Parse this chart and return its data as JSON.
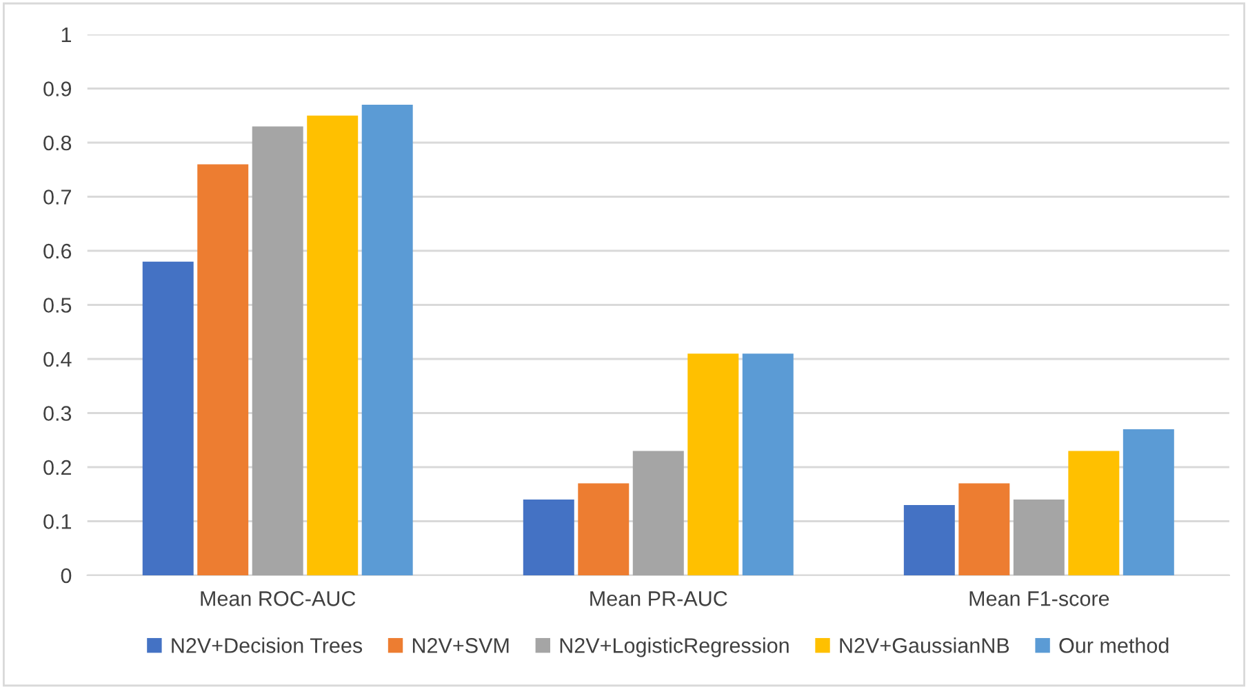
{
  "chart_data": {
    "type": "bar",
    "categories": [
      "Mean ROC-AUC",
      "Mean PR-AUC",
      "Mean F1-score"
    ],
    "series": [
      {
        "name": "N2V+Decision Trees",
        "color": "#4472c4",
        "values": [
          0.58,
          0.14,
          0.13
        ]
      },
      {
        "name": "N2V+SVM",
        "color": "#ed7d31",
        "values": [
          0.76,
          0.17,
          0.17
        ]
      },
      {
        "name": "N2V+LogisticRegression",
        "color": "#a5a5a5",
        "values": [
          0.83,
          0.23,
          0.14
        ]
      },
      {
        "name": "N2V+GaussianNB",
        "color": "#ffc000",
        "values": [
          0.85,
          0.41,
          0.23
        ]
      },
      {
        "name": "Our method",
        "color": "#5b9bd5",
        "values": [
          0.87,
          0.41,
          0.27
        ]
      }
    ],
    "ylim": [
      0,
      1
    ],
    "yticks": [
      0,
      0.1,
      0.2,
      0.3,
      0.4,
      0.5,
      0.6,
      0.7,
      0.8,
      0.9,
      1
    ],
    "grid": "y",
    "legend": "bottom"
  }
}
